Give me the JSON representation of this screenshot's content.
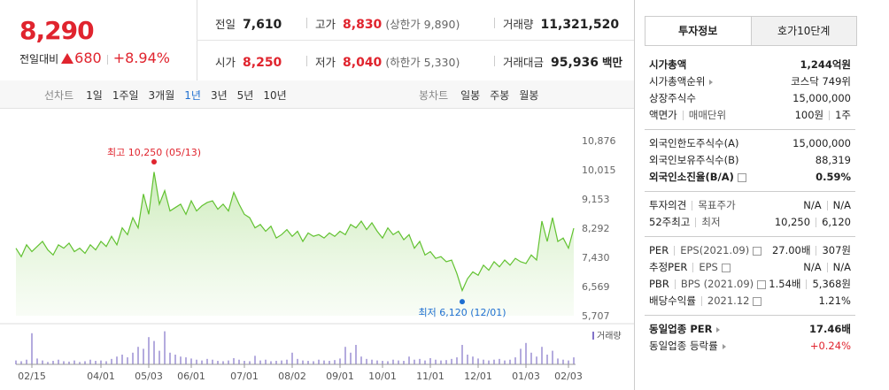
{
  "header": {
    "price": "8,290",
    "change_label": "전일대비",
    "change": "680",
    "rate": "+8.94%",
    "color": "#e0242e",
    "stats": [
      {
        "label": "전일",
        "value": "7,610",
        "color": "#222"
      },
      {
        "label": "고가",
        "value": "8,830",
        "note": "(상한가 9,890)",
        "color": "#e0242e"
      },
      {
        "label": "거래량",
        "value": "11,321,520",
        "color": "#222"
      },
      {
        "label": "시가",
        "value": "8,250",
        "color": "#e0242e"
      },
      {
        "label": "저가",
        "value": "8,040",
        "note": "(하한가 5,330)",
        "color": "#e0242e"
      },
      {
        "label": "거래대금",
        "value": "95,936",
        "unit": "백만",
        "color": "#222"
      }
    ]
  },
  "toolbar": {
    "line": {
      "label": "선차트",
      "options": [
        "1일",
        "1주일",
        "3개월",
        "1년",
        "3년",
        "5년",
        "10년"
      ],
      "selected": 3
    },
    "candle": {
      "label": "봉차트",
      "options": [
        "일봉",
        "주봉",
        "월봉"
      ]
    }
  },
  "chart_data": {
    "type": "line",
    "color": "#62c231",
    "grid": false,
    "categories": [
      null,
      null,
      null,
      "02/15",
      null,
      null,
      null,
      null,
      null,
      null,
      null,
      null,
      null,
      null,
      null,
      null,
      "04/01",
      null,
      null,
      null,
      null,
      null,
      null,
      null,
      null,
      "05/03",
      null,
      null,
      null,
      null,
      null,
      null,
      null,
      "06/01",
      null,
      null,
      null,
      null,
      null,
      null,
      null,
      null,
      null,
      "07/01",
      null,
      null,
      null,
      null,
      null,
      null,
      null,
      null,
      "08/02",
      null,
      null,
      null,
      null,
      null,
      null,
      null,
      null,
      "09/01",
      null,
      null,
      null,
      null,
      null,
      null,
      null,
      "10/01",
      null,
      null,
      null,
      null,
      null,
      null,
      null,
      null,
      "11/01",
      null,
      null,
      null,
      null,
      null,
      null,
      null,
      null,
      "12/01",
      null,
      null,
      null,
      null,
      null,
      null,
      null,
      null,
      "01/03",
      null,
      null,
      null,
      null,
      null,
      null,
      null,
      "02/03",
      null
    ],
    "values": [
      7700,
      7450,
      7800,
      7600,
      7750,
      7900,
      7650,
      7500,
      7800,
      7700,
      7850,
      7600,
      7700,
      7550,
      7800,
      7650,
      7900,
      7750,
      8050,
      7800,
      8300,
      8100,
      8600,
      8300,
      9300,
      8700,
      9950,
      9000,
      9400,
      8800,
      8900,
      9000,
      8700,
      9100,
      8800,
      8950,
      9050,
      9100,
      8850,
      9000,
      8800,
      9350,
      9000,
      8700,
      8600,
      8300,
      8400,
      8200,
      8350,
      8000,
      8100,
      8250,
      8050,
      8200,
      7900,
      8150,
      8050,
      8100,
      8000,
      8150,
      8050,
      8200,
      8100,
      8400,
      8300,
      8500,
      8250,
      8450,
      8200,
      8000,
      8300,
      8100,
      8200,
      7950,
      8100,
      7700,
      7900,
      7500,
      7600,
      7400,
      7450,
      7300,
      7350,
      6950,
      6450,
      6800,
      7000,
      6900,
      7200,
      7050,
      7300,
      7150,
      7350,
      7200,
      7400,
      7300,
      7250,
      7500,
      7350,
      8500,
      7900,
      8600,
      7900,
      8000,
      7700,
      8290
    ],
    "ylim": [
      5707,
      10876
    ],
    "yticks": [
      {
        "value": 10876,
        "label": "10,876"
      },
      {
        "value": 10015,
        "label": "10,015"
      },
      {
        "value": 9153,
        "label": "9,153"
      },
      {
        "value": 8292,
        "label": "8,292"
      },
      {
        "value": 7430,
        "label": "7,430"
      },
      {
        "value": 6569,
        "label": "6,569"
      },
      {
        "value": 5707,
        "label": "5,707"
      }
    ],
    "annotations": [
      {
        "text": "최고 10,250 (05/13)",
        "value": 10250,
        "at": 26,
        "color": "#e0242e"
      },
      {
        "text": "최저 6,120 (12/01)",
        "value": 6120,
        "at": 84,
        "color": "#1f6fd1"
      }
    ],
    "volume": {
      "name": "거래량",
      "color": "#8273c9",
      "vlim": [
        0,
        100
      ],
      "values": [
        10,
        8,
        12,
        80,
        15,
        10,
        6,
        9,
        12,
        8,
        7,
        10,
        6,
        8,
        12,
        9,
        10,
        8,
        14,
        20,
        25,
        18,
        30,
        45,
        40,
        70,
        60,
        35,
        85,
        30,
        25,
        20,
        18,
        15,
        12,
        10,
        14,
        12,
        9,
        8,
        10,
        16,
        12,
        9,
        8,
        22,
        10,
        12,
        8,
        9,
        10,
        12,
        30,
        14,
        10,
        9,
        8,
        12,
        10,
        9,
        11,
        15,
        45,
        30,
        50,
        20,
        14,
        12,
        10,
        9,
        8,
        12,
        10,
        9,
        20,
        12,
        14,
        10,
        16,
        12,
        10,
        11,
        14,
        18,
        50,
        25,
        20,
        15,
        12,
        10,
        12,
        14,
        10,
        12,
        18,
        40,
        55,
        30,
        20,
        45,
        25,
        35,
        15,
        12,
        10,
        18
      ]
    }
  },
  "info": {
    "tabs": [
      "투자정보",
      "호가10단계"
    ],
    "selected": 0,
    "sections": [
      {
        "rows": [
          {
            "label": [
              "시가총액"
            ],
            "value": [
              "1,244억원"
            ],
            "bold": true
          },
          {
            "label": [
              "시가총액순위"
            ],
            "value": [
              "코스닥 749위"
            ],
            "icon": "more"
          },
          {
            "label": [
              "상장주식수"
            ],
            "value": [
              "15,000,000"
            ]
          },
          {
            "label": [
              "액면가",
              "매매단위"
            ],
            "value": [
              "100원",
              "1주"
            ]
          }
        ]
      },
      {
        "rows": [
          {
            "label": [
              "외국인한도주식수(A)"
            ],
            "value": [
              "15,000,000"
            ]
          },
          {
            "label": [
              "외국인보유주식수(B)"
            ],
            "value": [
              "88,319"
            ]
          },
          {
            "label": [
              "외국인소진율(B/A)"
            ],
            "value": [
              "0.59%"
            ],
            "bold": true,
            "icon": "help"
          }
        ]
      },
      {
        "rows": [
          {
            "label": [
              "투자의견",
              "목표주가"
            ],
            "value": [
              "N/A",
              "N/A"
            ]
          },
          {
            "label": [
              "52주최고",
              "최저"
            ],
            "value": [
              "10,250",
              "6,120"
            ]
          }
        ]
      },
      {
        "rows": [
          {
            "label": [
              "PER",
              "EPS(2021.09)"
            ],
            "value": [
              "27.00배",
              "307원"
            ],
            "icon": "help"
          },
          {
            "label": [
              "추정PER",
              "EPS"
            ],
            "value": [
              "N/A",
              "N/A"
            ],
            "icon": "help"
          },
          {
            "label": [
              "PBR",
              "BPS (2021.09)"
            ],
            "value": [
              "1.54배",
              "5,368원"
            ],
            "icon": "help"
          },
          {
            "label": [
              "배당수익률",
              "2021.12"
            ],
            "value": [
              "1.21%"
            ],
            "icon": "help"
          }
        ]
      },
      {
        "rows": [
          {
            "label": [
              "동일업종 PER"
            ],
            "value": [
              "17.46배"
            ],
            "bold": true,
            "icon": "more"
          },
          {
            "label": [
              "동일업종 등락률"
            ],
            "value": [
              "+0.24%"
            ],
            "icon": "more",
            "color": "#e0242e"
          }
        ]
      }
    ]
  }
}
